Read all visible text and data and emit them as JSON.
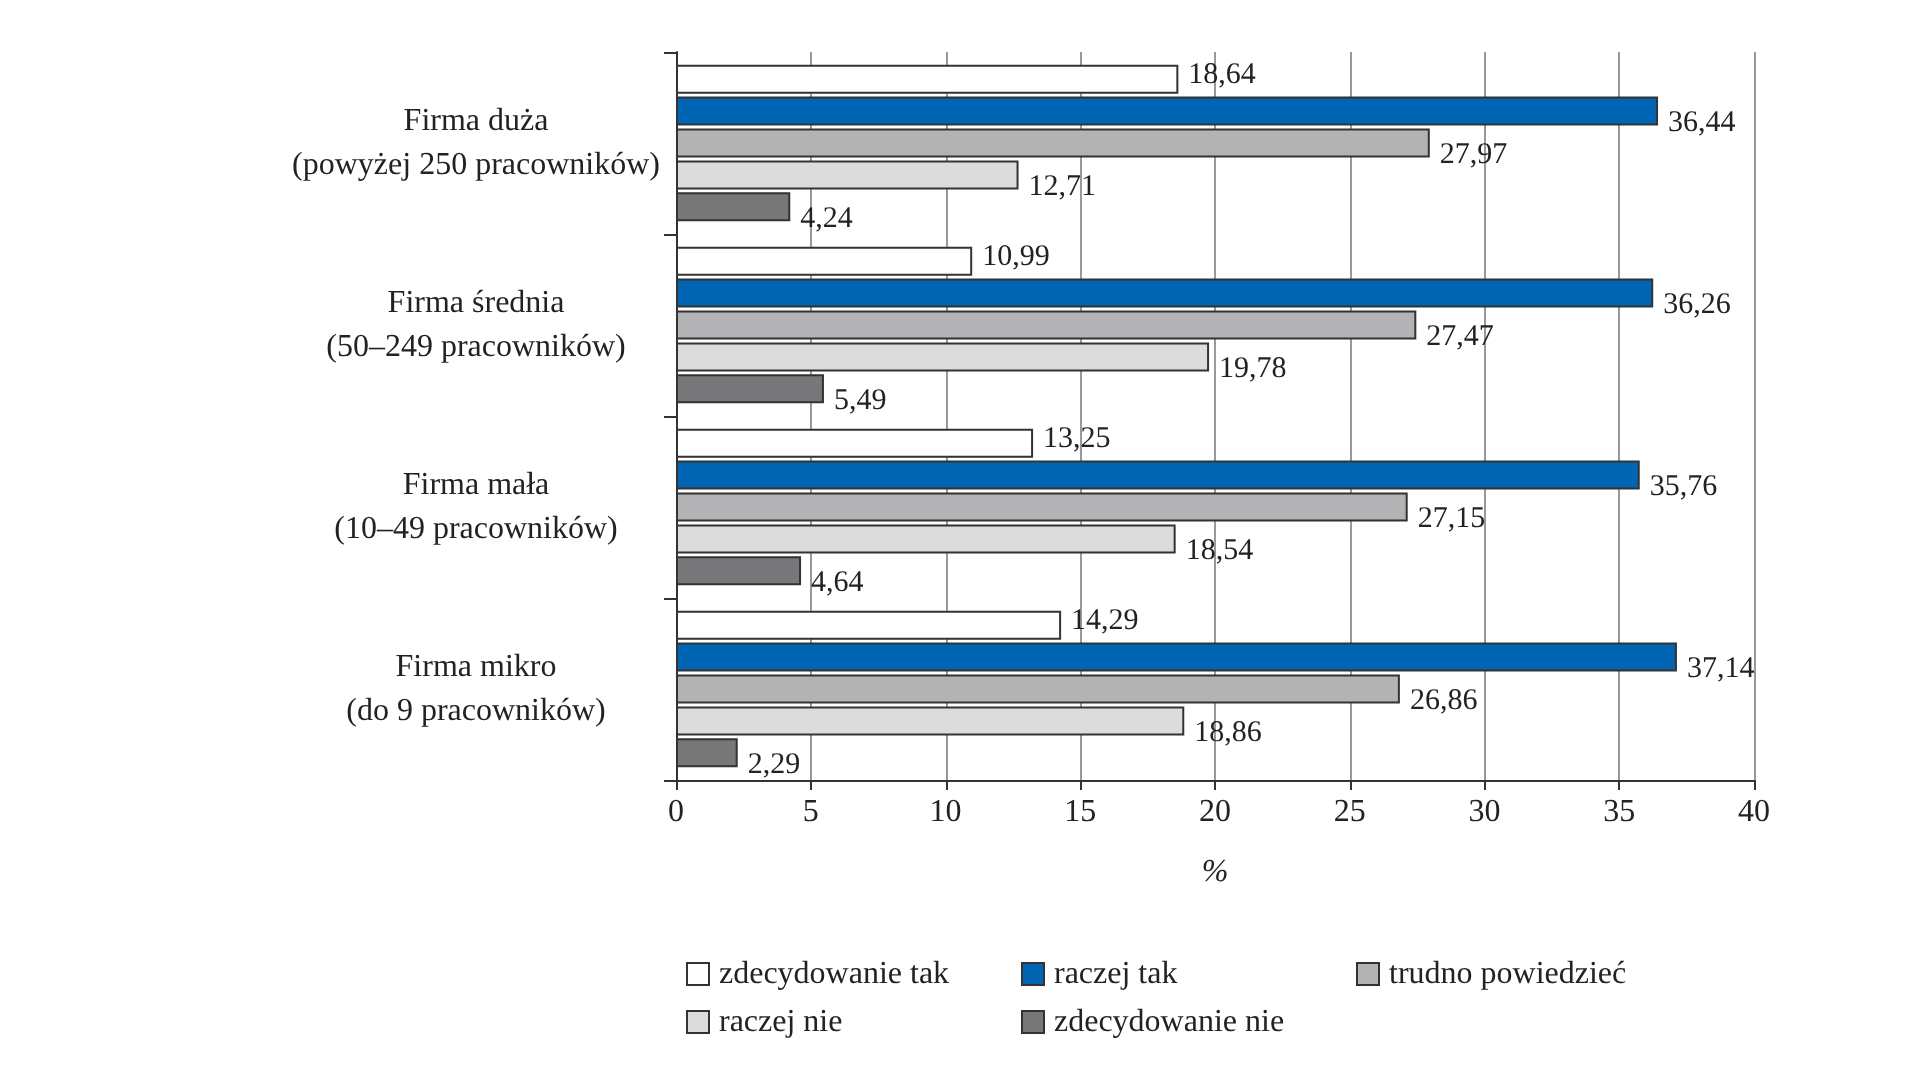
{
  "chart_data": {
    "type": "bar",
    "orientation": "horizontal",
    "categories": [
      "Firma duża\n(powyżej 250 pracowników)",
      "Firma średnia\n(50–249 pracowników)",
      "Firma mała\n(10–49 pracowników)",
      "Firma mikro\n(do 9 pracowników)"
    ],
    "series": [
      {
        "name": "zdecydowanie tak",
        "color": "#ffffff",
        "values": [
          18.64,
          10.99,
          13.25,
          14.29
        ],
        "value_labels": [
          "18,64",
          "10,99",
          "13,25",
          "14,29"
        ]
      },
      {
        "name": "raczej tak",
        "color": "#0066b3",
        "values": [
          36.44,
          36.26,
          35.76,
          37.14
        ],
        "value_labels": [
          "36,44",
          "36,26",
          "35,76",
          "37,14"
        ]
      },
      {
        "name": "trudno powiedzieć",
        "color": "#b3b3b6",
        "values": [
          27.97,
          27.47,
          27.15,
          26.86
        ],
        "value_labels": [
          "27,97",
          "27,47",
          "27,15",
          "26,86"
        ]
      },
      {
        "name": "raczej nie",
        "color": "#dcdcdc",
        "values": [
          12.71,
          19.78,
          18.54,
          18.86
        ],
        "value_labels": [
          "12,71",
          "19,78",
          "18,54",
          "18,86"
        ]
      },
      {
        "name": "zdecydowanie nie",
        "color": "#77777a",
        "values": [
          4.24,
          5.49,
          4.64,
          2.29
        ],
        "value_labels": [
          "4,24",
          "5,49",
          "4,64",
          "2,29"
        ]
      }
    ],
    "xlim": [
      0,
      40
    ],
    "xticks": [
      0,
      5,
      10,
      15,
      20,
      25,
      30,
      35,
      40
    ],
    "xlabel": "%",
    "grid": "x",
    "legend": "bottom"
  }
}
